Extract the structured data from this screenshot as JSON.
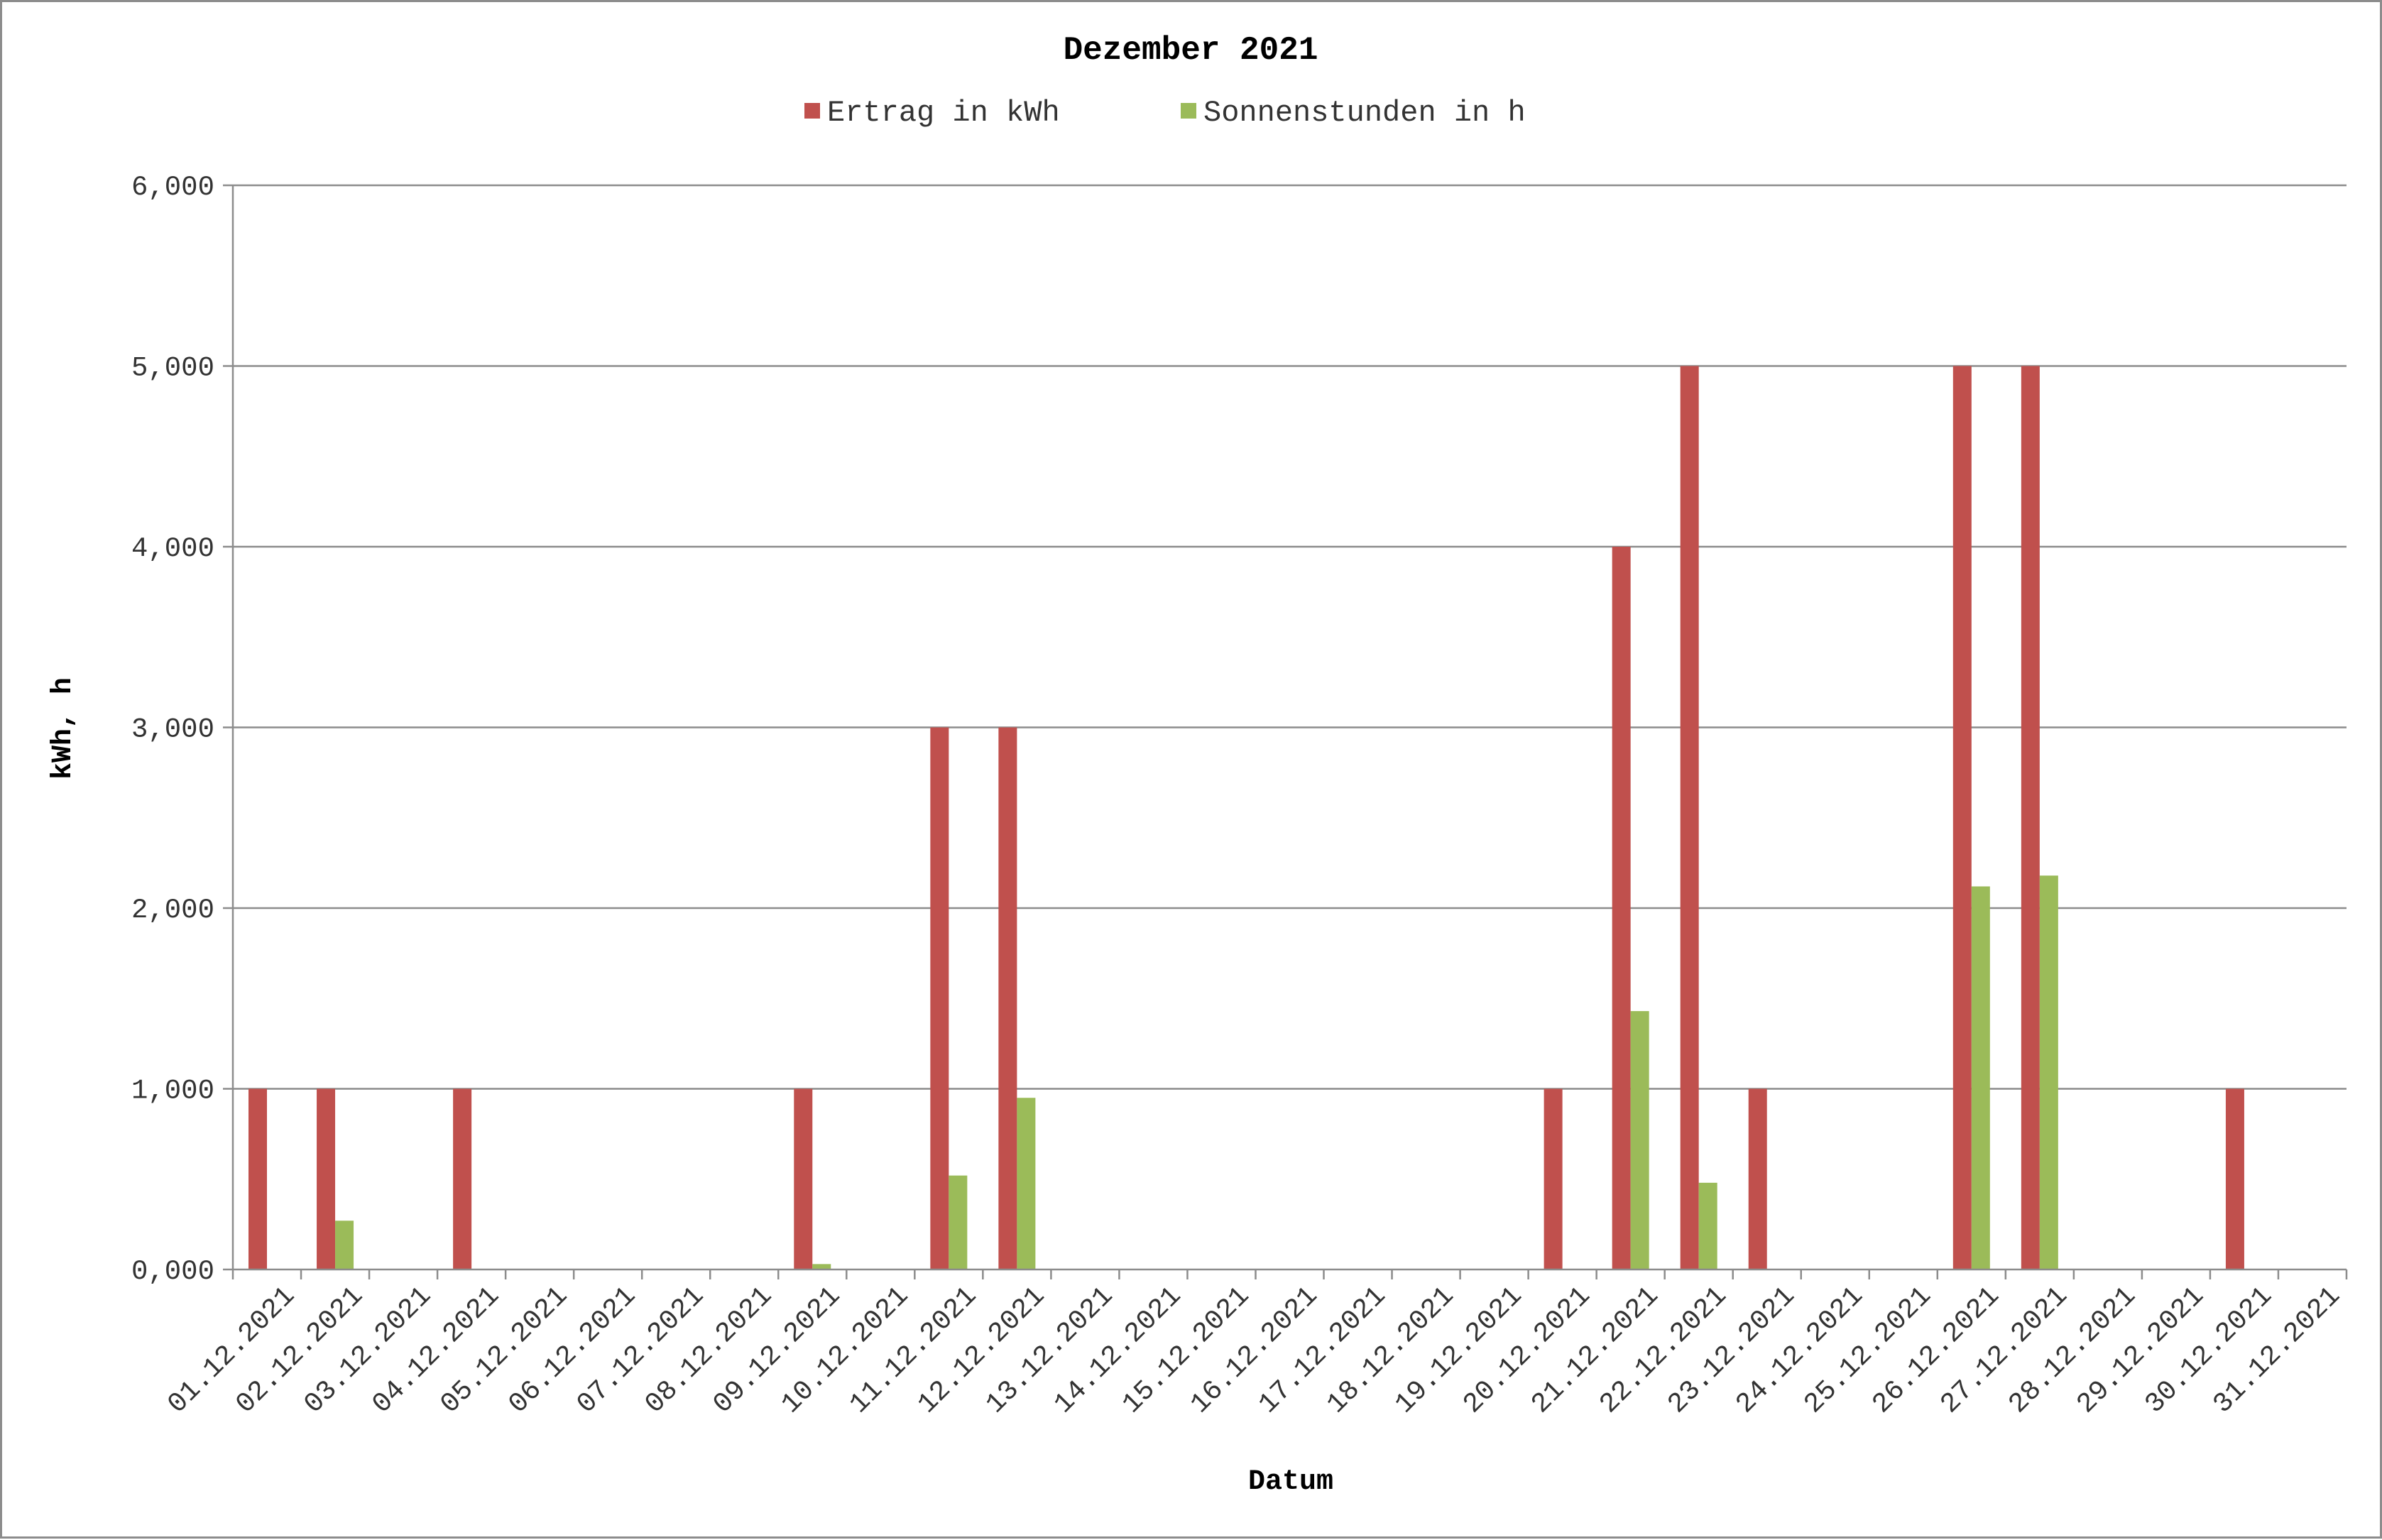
{
  "chart_data": {
    "type": "bar",
    "title": "Dezember 2021",
    "xlabel": "Datum",
    "ylabel": "kWh, h",
    "ylim": [
      0,
      6
    ],
    "yticks": [
      "0,000",
      "1,000",
      "2,000",
      "3,000",
      "4,000",
      "5,000",
      "6,000"
    ],
    "grid": true,
    "legend_position": "top-center",
    "categories": [
      "01.12.2021",
      "02.12.2021",
      "03.12.2021",
      "04.12.2021",
      "05.12.2021",
      "06.12.2021",
      "07.12.2021",
      "08.12.2021",
      "09.12.2021",
      "10.12.2021",
      "11.12.2021",
      "12.12.2021",
      "13.12.2021",
      "14.12.2021",
      "15.12.2021",
      "16.12.2021",
      "17.12.2021",
      "18.12.2021",
      "19.12.2021",
      "20.12.2021",
      "21.12.2021",
      "22.12.2021",
      "23.12.2021",
      "24.12.2021",
      "25.12.2021",
      "26.12.2021",
      "27.12.2021",
      "28.12.2021",
      "29.12.2021",
      "30.12.2021",
      "31.12.2021"
    ],
    "series": [
      {
        "name": "Ertrag in kWh",
        "color": "#c0504d",
        "values": [
          1,
          1,
          0,
          1,
          0,
          0,
          0,
          0,
          1,
          0,
          3,
          3,
          0,
          0,
          0,
          0,
          0,
          0,
          0,
          1,
          4,
          5,
          1,
          0,
          0,
          5,
          5,
          0,
          0,
          1,
          0
        ]
      },
      {
        "name": "Sonnenstunden in h",
        "color": "#9bbb59",
        "values": [
          0,
          0.27,
          0,
          0,
          0,
          0,
          0,
          0,
          0.03,
          0,
          0.52,
          0.95,
          0,
          0,
          0,
          0,
          0,
          0,
          0,
          0,
          1.43,
          0.48,
          0,
          0,
          0,
          2.12,
          2.18,
          0,
          0,
          0,
          0
        ]
      }
    ]
  }
}
